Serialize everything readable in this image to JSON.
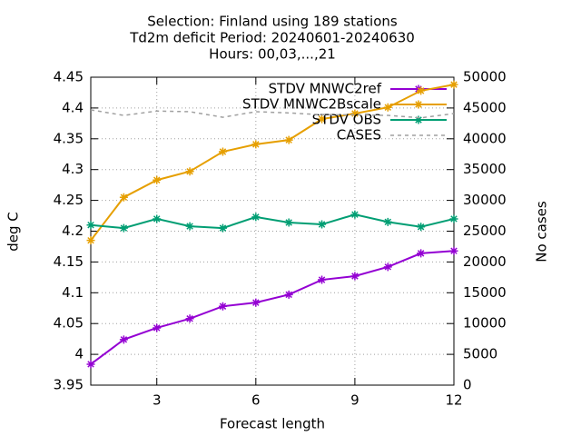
{
  "chart_data": {
    "type": "line",
    "title": [
      "Selection: Finland using   189 stations",
      "Td2m deficit   Period: 20240601-20240630",
      "Hours: 00,03,...,21"
    ],
    "x_label": "Forecast length",
    "y_label": "deg C",
    "y2_label": "No cases",
    "x": [
      1,
      2,
      3,
      4,
      5,
      6,
      7,
      8,
      9,
      10,
      11,
      12
    ],
    "xlim": [
      1,
      12
    ],
    "xticks": [
      3,
      6,
      9,
      12
    ],
    "ylim": [
      3.95,
      4.45
    ],
    "yticks": [
      3.95,
      4,
      4.05,
      4.1,
      4.15,
      4.2,
      4.25,
      4.3,
      4.35,
      4.4,
      4.45
    ],
    "y2lim": [
      0,
      50000
    ],
    "y2ticks": [
      0,
      5000,
      10000,
      15000,
      20000,
      25000,
      30000,
      35000,
      40000,
      45000,
      50000
    ],
    "grid": true,
    "legend": "top-right",
    "series": [
      {
        "name": "STDV MNWC2ref",
        "color": "#9400d3",
        "values": [
          3.984,
          4.024,
          4.043,
          4.058,
          4.078,
          4.084,
          4.097,
          4.121,
          4.127,
          4.142,
          4.164,
          4.168
        ]
      },
      {
        "name": "STDV MNWC2Bscale",
        "color": "#e69f00",
        "values": [
          4.185,
          4.255,
          4.283,
          4.297,
          4.329,
          4.341,
          4.348,
          4.382,
          4.391,
          4.401,
          4.428,
          4.438
        ]
      },
      {
        "name": "STDV OBS",
        "color": "#009e73",
        "values": [
          4.21,
          4.205,
          4.22,
          4.208,
          4.205,
          4.223,
          4.214,
          4.211,
          4.227,
          4.215,
          4.207,
          4.22
        ]
      },
      {
        "name": "CASES",
        "color": "#a0a0a0",
        "axis": "y2",
        "values": [
          44700,
          43800,
          44500,
          44400,
          43500,
          44400,
          44200,
          43900,
          43900,
          43800,
          43400,
          44100
        ]
      }
    ]
  }
}
